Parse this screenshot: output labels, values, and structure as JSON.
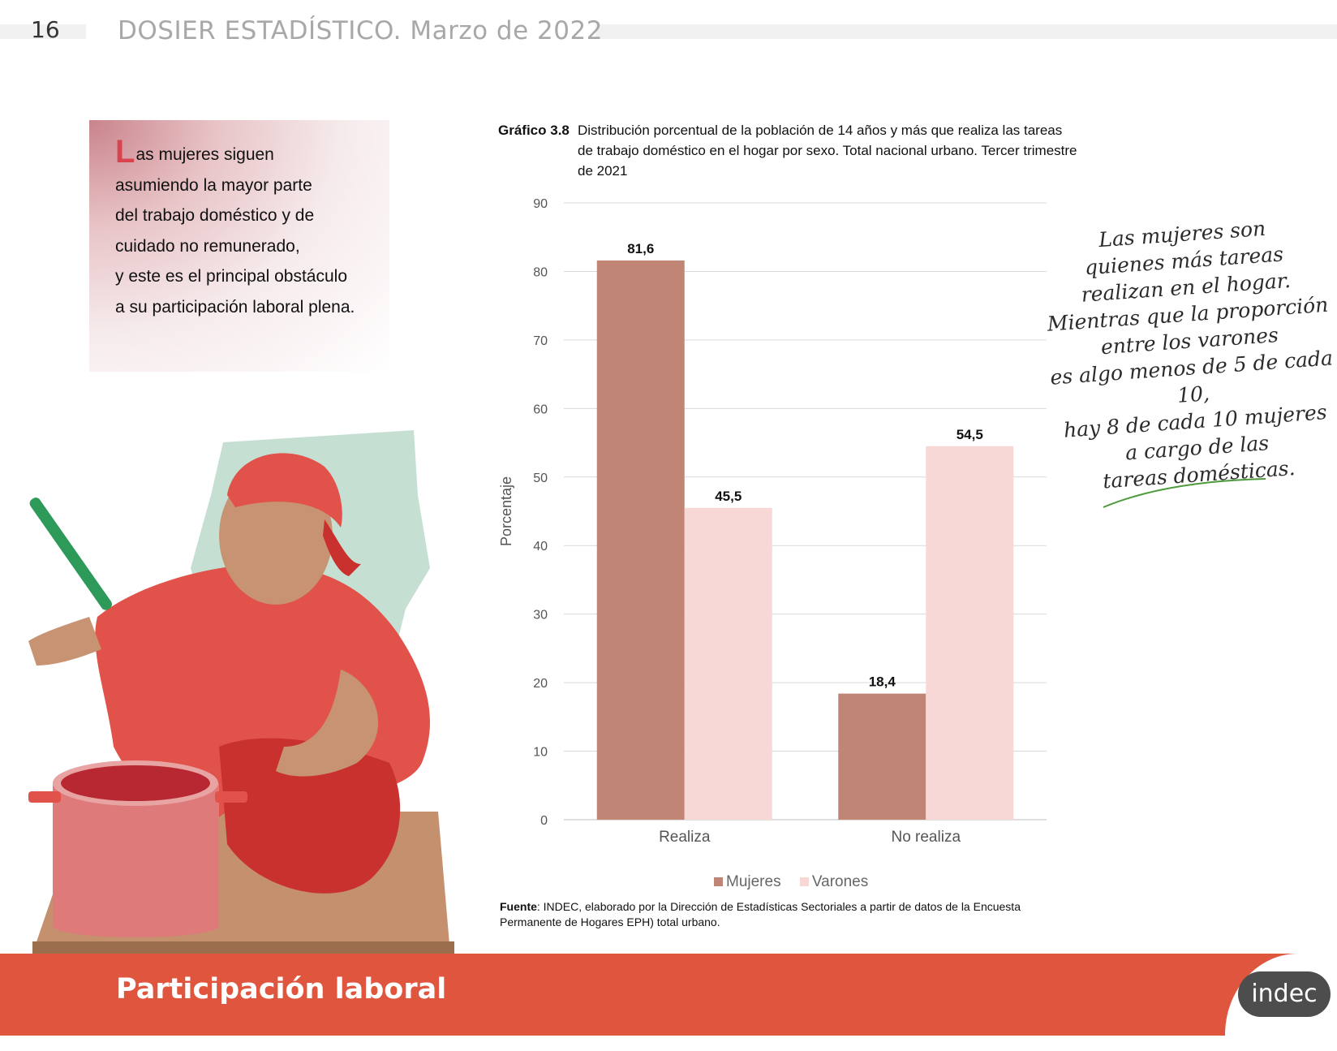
{
  "header": {
    "page_number": "16",
    "document_title": "DOSIER ESTADÍSTICO. Marzo de 2022"
  },
  "callout": {
    "dropcap": "L",
    "lines": [
      "as mujeres siguen",
      "asumiendo la mayor parte",
      "del trabajo doméstico y de",
      "cuidado no remunerado,",
      "y este es el principal obstáculo",
      "a su participación laboral plena."
    ]
  },
  "chart_caption": {
    "label": "Gráfico 3.8",
    "text": "Distribución porcentual de la población de 14 años y más que realiza las tareas de trabajo doméstico en el hogar por sexo. Total nacional urbano. Tercer trimestre de 2021"
  },
  "chart_data": {
    "type": "bar",
    "categories": [
      "Realiza",
      "No realiza"
    ],
    "series": [
      {
        "name": "Mujeres",
        "values": [
          81.6,
          18.4
        ],
        "labels": [
          "81,6",
          "18,4"
        ],
        "color": "#c08574"
      },
      {
        "name": "Varones",
        "values": [
          45.5,
          54.5
        ],
        "labels": [
          "45,5",
          "54,5"
        ],
        "color": "#f8d7d7"
      }
    ],
    "ylabel": "Porcentaje",
    "ylim": [
      0,
      90
    ],
    "yticks": [
      0,
      10,
      20,
      30,
      40,
      50,
      60,
      70,
      80,
      90
    ],
    "grid": true,
    "legend_position": "bottom"
  },
  "source": {
    "label": "Fuente",
    "text": ": INDEC, elaborado por la Dirección de Estadísticas Sectoriales a partir de datos de la Encuesta Permanente de Hogares EPH) total urbano."
  },
  "annotation": {
    "lines": [
      "Las mujeres son",
      "quienes más tareas",
      "realizan en el hogar.",
      "Mientras que la proporción",
      "entre los varones",
      "es algo menos de 5 de cada 10,",
      "hay 8 de cada 10 mujeres",
      "a cargo de las",
      "tareas domésticas."
    ]
  },
  "footer": {
    "section_title": "Participación laboral",
    "logo_text": "indec"
  },
  "colors": {
    "accent": "#e0553d",
    "mujeres": "#c08574",
    "varones": "#f8d7d7",
    "callout_accent": "#d9434d"
  }
}
